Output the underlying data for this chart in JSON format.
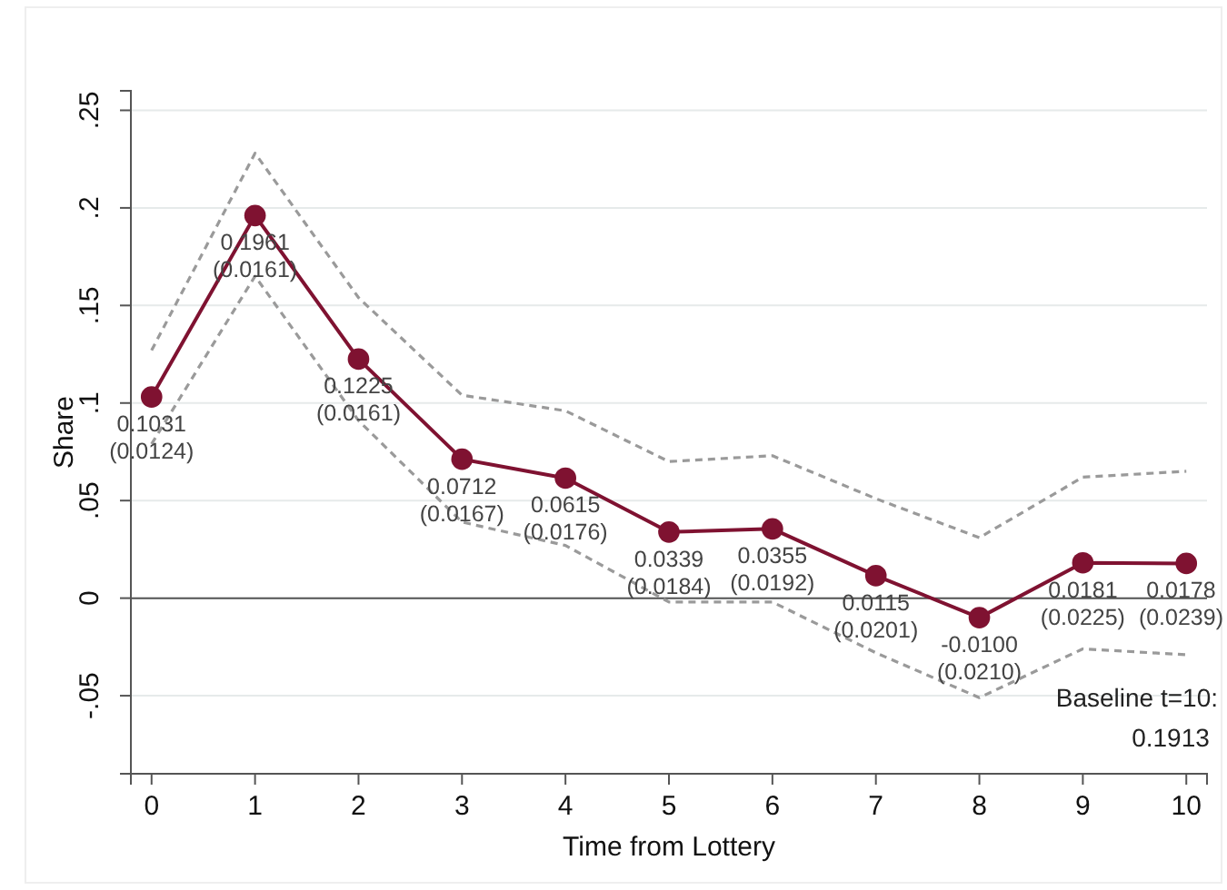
{
  "chart_data": {
    "type": "line",
    "xlabel": "Time from Lottery",
    "ylabel": "Share",
    "x": [
      0,
      1,
      2,
      3,
      4,
      5,
      6,
      7,
      8,
      9,
      10
    ],
    "series": [
      {
        "color": "#9a9a9a",
        "line_style": "dashed",
        "marker": "none",
        "values": [
          0.079,
          0.165,
          0.091,
          0.039,
          0.027,
          -0.002,
          -0.002,
          -0.028,
          -0.051,
          -0.026,
          -0.029
        ]
      },
      {
        "color": "#9a9a9a",
        "line_style": "dashed",
        "marker": "none",
        "values": [
          0.127,
          0.228,
          0.154,
          0.104,
          0.096,
          0.07,
          0.073,
          0.051,
          0.031,
          0.062,
          0.065
        ]
      },
      {
        "color": "#7f1231",
        "values": [
          0.1031,
          0.1961,
          0.1225,
          0.0712,
          0.0615,
          0.0339,
          0.0355,
          0.0115,
          -0.01,
          0.0181,
          0.0178
        ],
        "value_labels": [
          "0.1031\n(0.0124)",
          "0.1961\n(0.0161)",
          "0.1225\n(0.0161)",
          "0.0712\n(0.0167)",
          "0.0615\n(0.0176)",
          "0.0339\n(0.0184)",
          "0.0355\n(0.0192)",
          "0.0115\n(0.0201)",
          "-0.0100\n(0.0210)",
          "0.0181\n(0.0225)",
          "0.0178\n(0.0239)"
        ]
      }
    ],
    "xlim": [
      -0.2,
      10.2
    ],
    "xticks": [
      0,
      1,
      2,
      3,
      4,
      5,
      6,
      7,
      8,
      9,
      10
    ],
    "ylim": [
      -0.09,
      0.26
    ],
    "yticks": [
      {
        "value": -0.05,
        "label": "-.05"
      },
      0,
      {
        "value": 0.05,
        "label": ".05"
      },
      {
        "value": 0.1,
        "label": ".1"
      },
      {
        "value": 0.15,
        "label": ".15"
      },
      {
        "value": 0.2,
        "label": ".2"
      },
      {
        "value": 0.25,
        "label": ".25"
      }
    ],
    "grid": "y",
    "marker": "circle",
    "line_style": "solid",
    "ref_lines": [
      {
        "axis": "y",
        "value": 0,
        "color": "#555555"
      }
    ],
    "annotations": [
      "Baseline t=10:\n0.1913"
    ]
  }
}
